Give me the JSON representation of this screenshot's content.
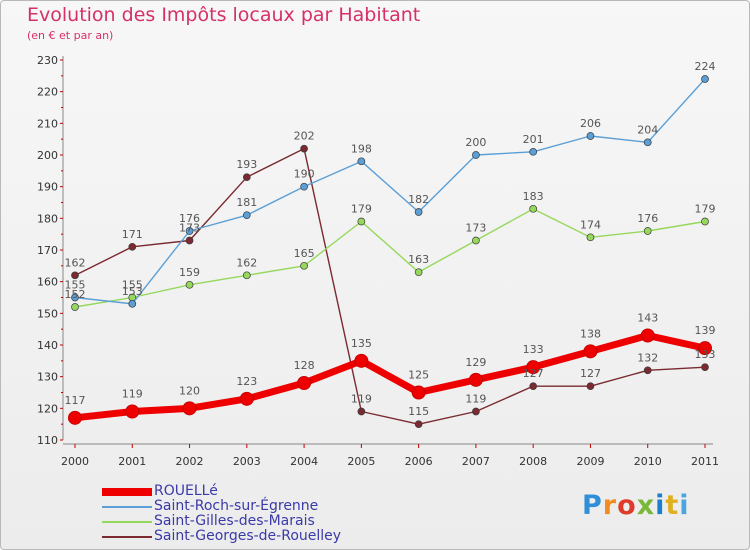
{
  "header": {
    "title": "Evolution des Impôts locaux par Habitant",
    "subtitle": "(en € et par an)"
  },
  "chart_data": {
    "type": "line",
    "title": "Evolution des Impôts locaux par Habitant",
    "subtitle": "(en € et par an)",
    "x": [
      "2000",
      "2001",
      "2002",
      "2003",
      "2004",
      "2005",
      "2006",
      "2007",
      "2008",
      "2009",
      "2010",
      "2011"
    ],
    "ylim": [
      110,
      230
    ],
    "yticks": [
      110,
      120,
      130,
      140,
      150,
      160,
      170,
      180,
      190,
      200,
      210,
      220,
      230
    ],
    "grid": false,
    "legend_position": "bottom-left",
    "series": [
      {
        "name": "ROUELLé",
        "color": "#ee0000",
        "values": [
          117,
          119,
          120,
          123,
          128,
          135,
          125,
          129,
          133,
          138,
          143,
          139
        ]
      },
      {
        "name": "Saint-Roch-sur-Égrenne",
        "color": "#5b9fd6",
        "values": [
          155,
          153,
          176,
          181,
          190,
          198,
          182,
          200,
          201,
          206,
          204,
          224
        ]
      },
      {
        "name": "Saint-Gilles-des-Marais",
        "color": "#96d85c",
        "values": [
          152,
          155,
          159,
          162,
          165,
          179,
          163,
          173,
          183,
          174,
          176,
          179
        ]
      },
      {
        "name": "Saint-Georges-de-Rouelley",
        "color": "#7a2a30",
        "values": [
          162,
          171,
          173,
          193,
          202,
          119,
          115,
          119,
          127,
          127,
          132,
          133
        ]
      }
    ]
  },
  "logo": {
    "text": "Proxiti",
    "letters": [
      "P",
      "r",
      "o",
      "x",
      "i",
      "t",
      "i"
    ]
  }
}
